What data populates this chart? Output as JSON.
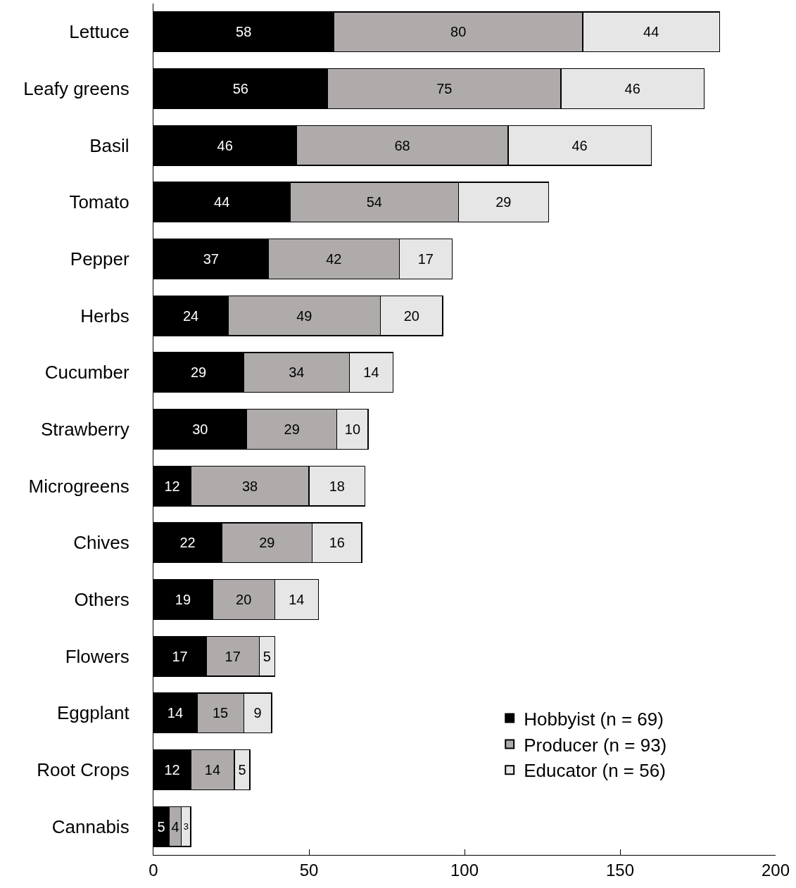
{
  "chart_data": {
    "type": "bar",
    "orientation": "horizontal",
    "stacked": true,
    "data_labels": true,
    "legend": "bottom right",
    "categories": [
      "Lettuce",
      "Leafy greens",
      "Basil",
      "Tomato",
      "Pepper",
      "Herbs",
      "Cucumber",
      "Strawberry",
      "Microgreens",
      "Chives",
      "Others",
      "Flowers",
      "Eggplant",
      "Root Crops",
      "Cannabis"
    ],
    "series": [
      {
        "name": "Hobbyist (n = 69)",
        "color": "#000000",
        "values": [
          58,
          56,
          46,
          44,
          37,
          24,
          29,
          30,
          12,
          22,
          19,
          17,
          14,
          12,
          5
        ]
      },
      {
        "name": "Producer (n = 93)",
        "color": "#afabab",
        "values": [
          80,
          75,
          68,
          54,
          42,
          49,
          34,
          29,
          38,
          29,
          20,
          17,
          15,
          14,
          4
        ]
      },
      {
        "name": "Educator (n = 56)",
        "color": "#e7e6e6",
        "values": [
          44,
          46,
          46,
          29,
          17,
          20,
          14,
          10,
          18,
          16,
          14,
          5,
          9,
          5,
          3
        ]
      }
    ],
    "xlim": [
      0,
      200
    ],
    "xticks": [
      0,
      50,
      100,
      150,
      200
    ]
  }
}
